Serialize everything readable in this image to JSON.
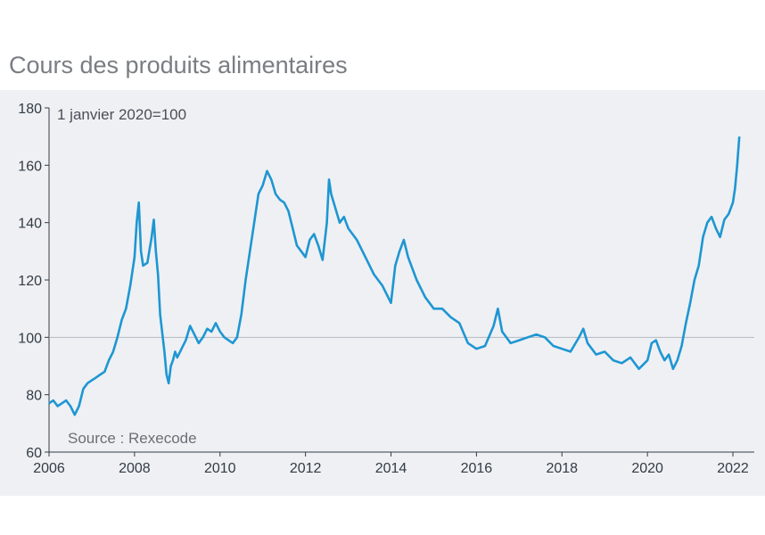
{
  "title": "Cours des produits alimentaires",
  "chart_data": {
    "type": "line",
    "title": "Cours des produits alimentaires",
    "xlabel": "",
    "ylabel": "",
    "unit_note": "1 janvier 2020=100",
    "source": "Source : Rexecode",
    "xlim": [
      2006,
      2022.5
    ],
    "ylim": [
      60,
      180
    ],
    "x_ticks": [
      2006,
      2008,
      2010,
      2012,
      2014,
      2016,
      2018,
      2020,
      2022
    ],
    "y_ticks": [
      60,
      80,
      100,
      120,
      140,
      160,
      180
    ],
    "reference_line": 100,
    "grid": false,
    "line_color": "#1e96d2",
    "reference_color": "#b5b9bf",
    "series": [
      {
        "x": [
          2006.0,
          2006.1,
          2006.2,
          2006.3,
          2006.4,
          2006.5,
          2006.6,
          2006.7,
          2006.8,
          2006.9,
          2007.0,
          2007.1,
          2007.2,
          2007.3,
          2007.4,
          2007.5,
          2007.6,
          2007.7,
          2007.8,
          2007.9,
          2008.0,
          2008.05,
          2008.1,
          2008.15,
          2008.2,
          2008.3,
          2008.4,
          2008.45,
          2008.5,
          2008.55,
          2008.6,
          2008.7,
          2008.75,
          2008.8,
          2008.85,
          2008.9,
          2008.95,
          2009.0,
          2009.1,
          2009.2,
          2009.3,
          2009.4,
          2009.5,
          2009.6,
          2009.7,
          2009.8,
          2009.9,
          2010.0,
          2010.1,
          2010.2,
          2010.3,
          2010.4,
          2010.5,
          2010.6,
          2010.7,
          2010.8,
          2010.9,
          2011.0,
          2011.1,
          2011.2,
          2011.3,
          2011.4,
          2011.5,
          2011.6,
          2011.7,
          2011.8,
          2011.9,
          2012.0,
          2012.1,
          2012.2,
          2012.3,
          2012.4,
          2012.5,
          2012.55,
          2012.6,
          2012.7,
          2012.8,
          2012.9,
          2013.0,
          2013.2,
          2013.4,
          2013.6,
          2013.8,
          2014.0,
          2014.1,
          2014.2,
          2014.3,
          2014.4,
          2014.6,
          2014.8,
          2015.0,
          2015.2,
          2015.4,
          2015.6,
          2015.8,
          2016.0,
          2016.2,
          2016.4,
          2016.5,
          2016.6,
          2016.8,
          2017.0,
          2017.2,
          2017.4,
          2017.6,
          2017.8,
          2018.0,
          2018.2,
          2018.4,
          2018.5,
          2018.6,
          2018.8,
          2019.0,
          2019.2,
          2019.4,
          2019.6,
          2019.8,
          2020.0,
          2020.1,
          2020.2,
          2020.3,
          2020.4,
          2020.5,
          2020.6,
          2020.7,
          2020.8,
          2020.9,
          2021.0,
          2021.1,
          2021.2,
          2021.3,
          2021.4,
          2021.5,
          2021.6,
          2021.7,
          2021.8,
          2021.9,
          2022.0,
          2022.05,
          2022.1,
          2022.15
        ],
        "y": [
          77,
          78,
          76,
          77,
          78,
          76,
          73,
          76,
          82,
          84,
          85,
          86,
          87,
          88,
          92,
          95,
          100,
          106,
          110,
          118,
          128,
          140,
          147,
          130,
          125,
          126,
          135,
          141,
          130,
          122,
          108,
          95,
          87,
          84,
          90,
          92,
          95,
          93,
          96,
          99,
          104,
          101,
          98,
          100,
          103,
          102,
          105,
          102,
          100,
          99,
          98,
          100,
          108,
          120,
          130,
          140,
          150,
          153,
          158,
          155,
          150,
          148,
          147,
          144,
          138,
          132,
          130,
          128,
          134,
          136,
          132,
          127,
          140,
          155,
          150,
          145,
          140,
          142,
          138,
          134,
          128,
          122,
          118,
          112,
          125,
          130,
          134,
          128,
          120,
          114,
          110,
          110,
          107,
          105,
          98,
          96,
          97,
          104,
          110,
          102,
          98,
          99,
          100,
          101,
          100,
          97,
          96,
          95,
          100,
          103,
          98,
          94,
          95,
          92,
          91,
          93,
          89,
          92,
          98,
          99,
          95,
          92,
          94,
          89,
          92,
          97,
          105,
          112,
          120,
          125,
          135,
          140,
          142,
          138,
          135,
          141,
          143,
          147,
          152,
          160,
          170
        ]
      }
    ]
  }
}
